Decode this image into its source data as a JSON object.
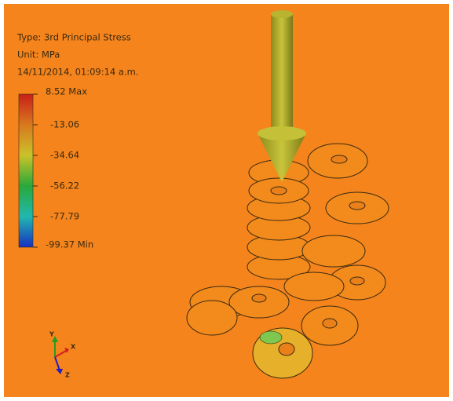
{
  "legend": {
    "type": "Type: 3rd Principal Stress",
    "unit": "Unit: MPa",
    "timestamp": "14/11/2014, 01:09:14 a.m.",
    "scale_labels": [
      "8.52 Max",
      "-13.06",
      "-34.64",
      "-56.22",
      "-77.79",
      "-99.37 Min"
    ]
  },
  "triad": {
    "x": "X",
    "y": "Y",
    "z": "Z"
  }
}
